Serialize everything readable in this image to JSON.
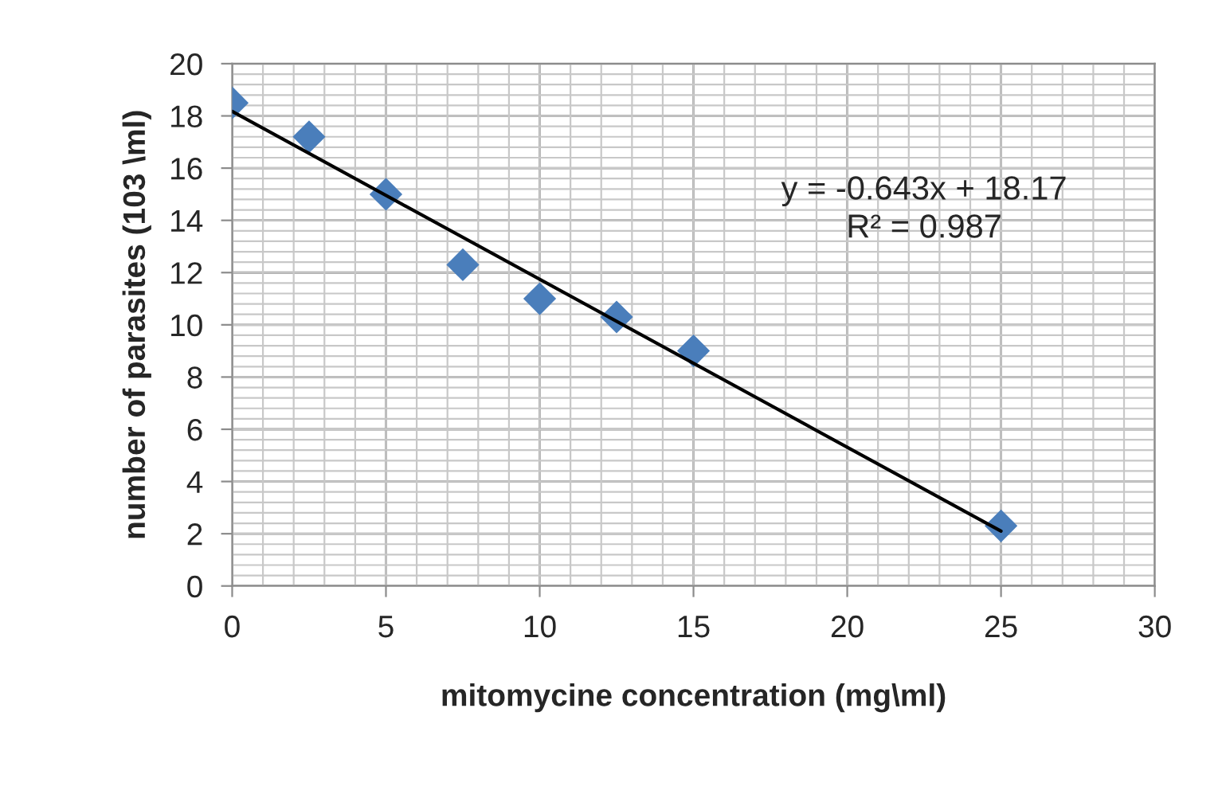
{
  "chart_data": {
    "type": "scatter",
    "xlabel": "mitomycine concentration (mg\\ml)",
    "ylabel": "number of parasites (103 \\ml)",
    "grid": true,
    "xlim": [
      0,
      30
    ],
    "ylim": [
      0,
      20
    ],
    "xticks": [
      0,
      5,
      10,
      15,
      20,
      25,
      30
    ],
    "yticks": [
      0,
      2,
      4,
      6,
      8,
      10,
      12,
      14,
      16,
      18,
      20
    ],
    "series": [
      {
        "marker": "diamond",
        "color": "#4a7ebb",
        "x": [
          0,
          2.5,
          5,
          7.5,
          10,
          12.5,
          15,
          25
        ],
        "values": [
          18.5,
          17.2,
          15.0,
          12.3,
          11.0,
          10.3,
          9.0,
          2.3
        ]
      },
      {
        "type": "line",
        "marker": "none",
        "color": "#000000",
        "x": [
          0,
          25
        ],
        "values": [
          18.17,
          2.1
        ]
      }
    ],
    "annotations": [
      "y = -0.643x + 18.17\nR² = 0.987"
    ]
  }
}
